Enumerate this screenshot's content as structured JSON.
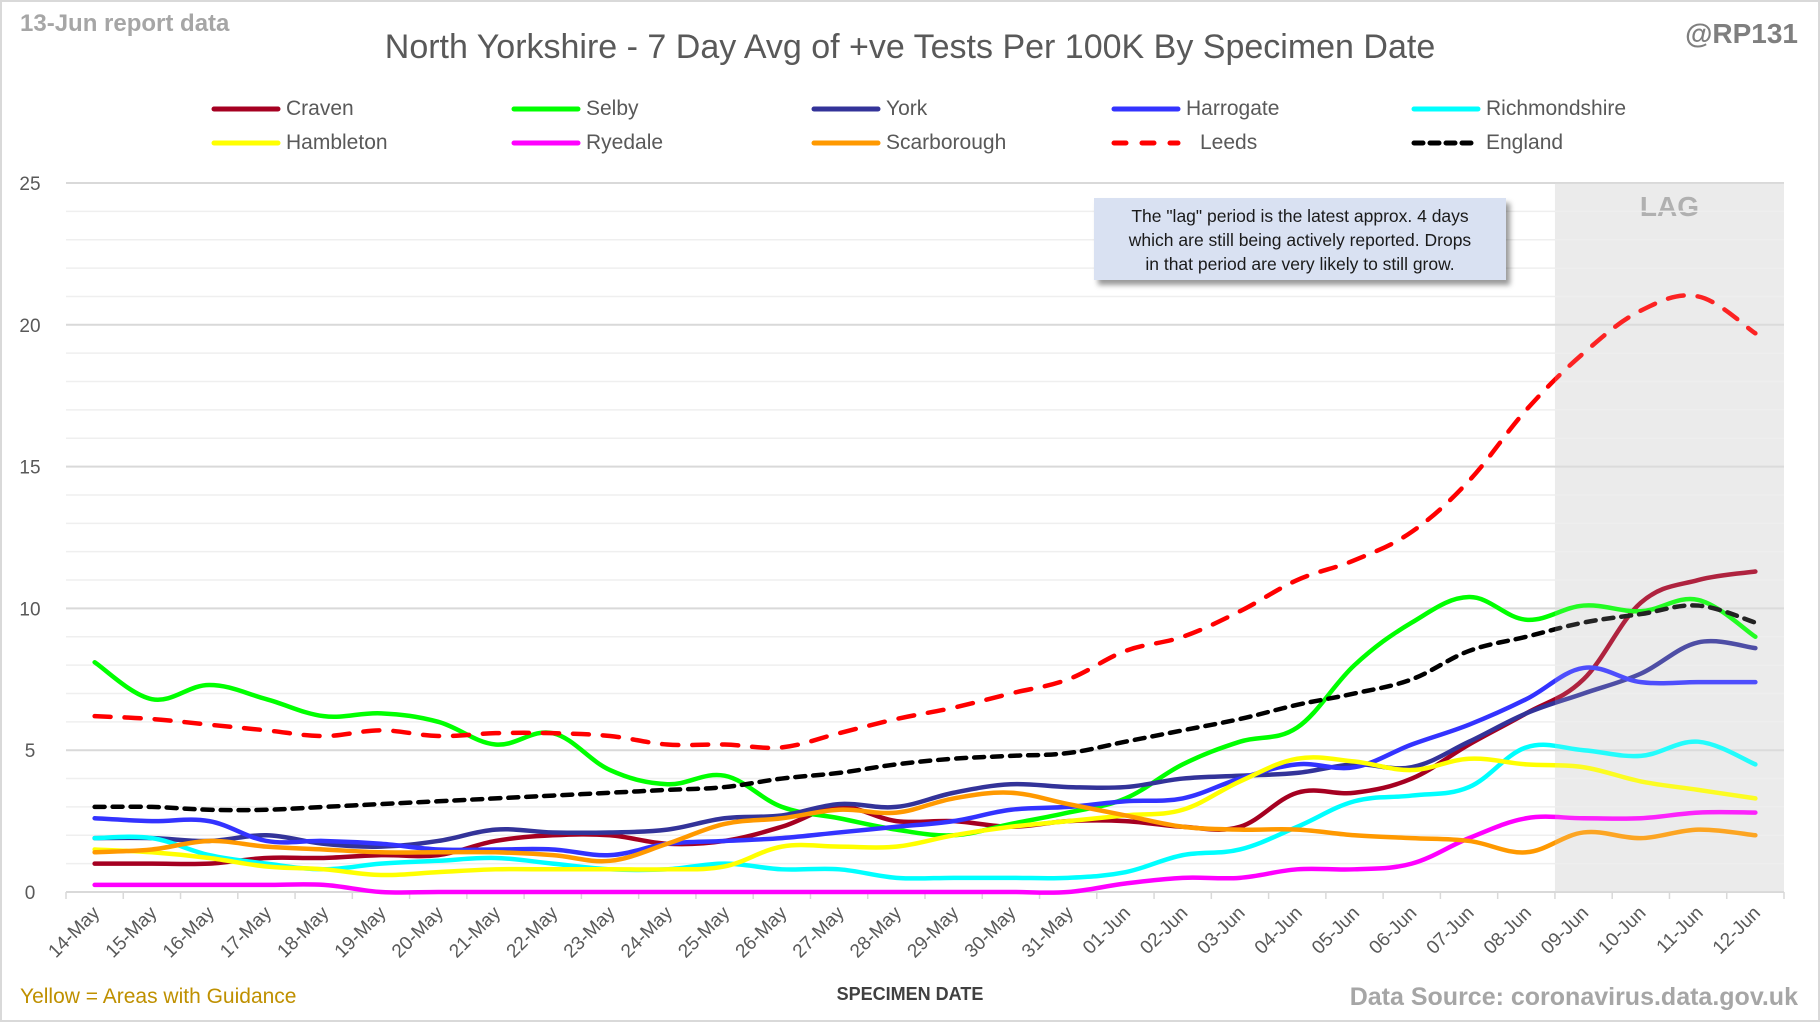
{
  "header": {
    "report_date": "13-Jun report data",
    "handle": "@RP131",
    "title": "North Yorkshire - 7 Day Avg of +ve Tests Per 100K By Specimen Date"
  },
  "annotation": {
    "lines": [
      "The \"lag\" period is the latest approx. 4 days",
      "which are still being actively reported.  Drops",
      "in that period are very likely to still grow."
    ],
    "lag_label": "LAG"
  },
  "footer": {
    "left_note": "Yellow = Areas with Guidance",
    "source": "Data Source: coronavirus.data.gov.uk"
  },
  "chart_data": {
    "type": "line",
    "title": "North Yorkshire - 7 Day Avg of +ve Tests Per 100K By Specimen Date",
    "xlabel": "SPECIMEN DATE",
    "ylabel": "",
    "ylim": [
      0,
      25
    ],
    "yticks": [
      0,
      5,
      10,
      15,
      20,
      25
    ],
    "minor_grid_step": 1,
    "grid": true,
    "legend_position": "top",
    "lag_period": {
      "from": "09-Jun",
      "to": "12-Jun",
      "label": "LAG"
    },
    "x": [
      "14-May",
      "15-May",
      "16-May",
      "17-May",
      "18-May",
      "19-May",
      "20-May",
      "21-May",
      "22-May",
      "23-May",
      "24-May",
      "25-May",
      "26-May",
      "27-May",
      "28-May",
      "29-May",
      "30-May",
      "31-May",
      "01-Jun",
      "02-Jun",
      "03-Jun",
      "04-Jun",
      "05-Jun",
      "06-Jun",
      "07-Jun",
      "08-Jun",
      "09-Jun",
      "10-Jun",
      "11-Jun",
      "12-Jun"
    ],
    "series": [
      {
        "name": "Craven",
        "color": "#a50021",
        "dash": "solid",
        "values": [
          1.0,
          1.0,
          1.0,
          1.2,
          1.2,
          1.3,
          1.3,
          1.8,
          2.0,
          2.0,
          1.7,
          1.8,
          2.3,
          3.0,
          2.5,
          2.5,
          2.3,
          2.5,
          2.5,
          2.3,
          2.3,
          3.5,
          3.5,
          4.0,
          5.2,
          6.3,
          7.5,
          10.2,
          11.0,
          11.3
        ]
      },
      {
        "name": "Selby",
        "color": "#00ff00",
        "dash": "solid",
        "values": [
          8.1,
          6.8,
          7.3,
          6.8,
          6.2,
          6.3,
          6.0,
          5.2,
          5.6,
          4.3,
          3.8,
          4.1,
          3.0,
          2.6,
          2.2,
          2.0,
          2.4,
          2.8,
          3.3,
          4.5,
          5.3,
          5.8,
          8.0,
          9.5,
          10.4,
          9.6,
          10.1,
          9.9,
          10.3,
          9.0
        ]
      },
      {
        "name": "York",
        "color": "#333399",
        "dash": "solid",
        "values": [
          1.9,
          1.9,
          1.8,
          2.0,
          1.7,
          1.6,
          1.8,
          2.2,
          2.1,
          2.1,
          2.2,
          2.6,
          2.7,
          3.1,
          3.0,
          3.5,
          3.8,
          3.7,
          3.7,
          4.0,
          4.1,
          4.2,
          4.5,
          4.4,
          5.3,
          6.3,
          7.0,
          7.7,
          8.8,
          8.6
        ]
      },
      {
        "name": "Harrogate",
        "color": "#3333ff",
        "dash": "solid",
        "values": [
          2.6,
          2.5,
          2.5,
          1.8,
          1.8,
          1.7,
          1.5,
          1.5,
          1.5,
          1.3,
          1.7,
          1.8,
          1.9,
          2.1,
          2.3,
          2.5,
          2.9,
          3.0,
          3.2,
          3.3,
          4.0,
          4.5,
          4.4,
          5.2,
          5.9,
          6.8,
          7.9,
          7.4,
          7.4,
          7.4
        ]
      },
      {
        "name": "Richmondshire",
        "color": "#00ffff",
        "dash": "solid",
        "values": [
          1.9,
          1.9,
          1.3,
          1.0,
          0.8,
          1.0,
          1.1,
          1.2,
          1.0,
          0.8,
          0.8,
          1.0,
          0.8,
          0.8,
          0.5,
          0.5,
          0.5,
          0.5,
          0.7,
          1.3,
          1.5,
          2.3,
          3.2,
          3.4,
          3.7,
          5.1,
          5.0,
          4.8,
          5.3,
          4.5
        ]
      },
      {
        "name": "Hambleton",
        "color": "#ffff00",
        "dash": "solid",
        "values": [
          1.5,
          1.4,
          1.2,
          0.9,
          0.8,
          0.6,
          0.7,
          0.8,
          0.8,
          0.8,
          0.8,
          0.9,
          1.6,
          1.6,
          1.6,
          2.0,
          2.3,
          2.5,
          2.7,
          2.9,
          3.9,
          4.7,
          4.6,
          4.3,
          4.7,
          4.5,
          4.4,
          3.9,
          3.6,
          3.3
        ]
      },
      {
        "name": "Ryedale",
        "color": "#ff00ff",
        "dash": "solid",
        "values": [
          0.25,
          0.25,
          0.25,
          0.25,
          0.25,
          0.0,
          0.0,
          0.0,
          0.0,
          0.0,
          0.0,
          0.0,
          0.0,
          0.0,
          0.0,
          0.0,
          0.0,
          0.0,
          0.3,
          0.5,
          0.5,
          0.8,
          0.8,
          1.0,
          1.9,
          2.6,
          2.6,
          2.6,
          2.8,
          2.8
        ]
      },
      {
        "name": "Scarborough",
        "color": "#ff9900",
        "dash": "solid",
        "values": [
          1.4,
          1.5,
          1.8,
          1.6,
          1.5,
          1.4,
          1.4,
          1.4,
          1.3,
          1.1,
          1.7,
          2.4,
          2.6,
          2.9,
          2.8,
          3.3,
          3.5,
          3.1,
          2.7,
          2.3,
          2.2,
          2.2,
          2.0,
          1.9,
          1.8,
          1.4,
          2.1,
          1.9,
          2.2,
          2.0
        ]
      },
      {
        "name": "Leeds",
        "color": "#ff0000",
        "dash": "long-dash",
        "values": [
          6.2,
          6.1,
          5.9,
          5.7,
          5.5,
          5.7,
          5.5,
          5.6,
          5.6,
          5.5,
          5.2,
          5.2,
          5.1,
          5.6,
          6.1,
          6.5,
          7.0,
          7.5,
          8.5,
          9.0,
          9.9,
          11.0,
          11.7,
          12.7,
          14.5,
          17.0,
          19.0,
          20.5,
          21.0,
          19.7
        ]
      },
      {
        "name": "England",
        "color": "#000000",
        "dash": "short-dash",
        "values": [
          3.0,
          3.0,
          2.9,
          2.9,
          3.0,
          3.1,
          3.2,
          3.3,
          3.4,
          3.5,
          3.6,
          3.7,
          4.0,
          4.2,
          4.5,
          4.7,
          4.8,
          4.9,
          5.3,
          5.7,
          6.1,
          6.6,
          7.0,
          7.5,
          8.5,
          9.0,
          9.5,
          9.8,
          10.1,
          9.5
        ]
      }
    ]
  }
}
